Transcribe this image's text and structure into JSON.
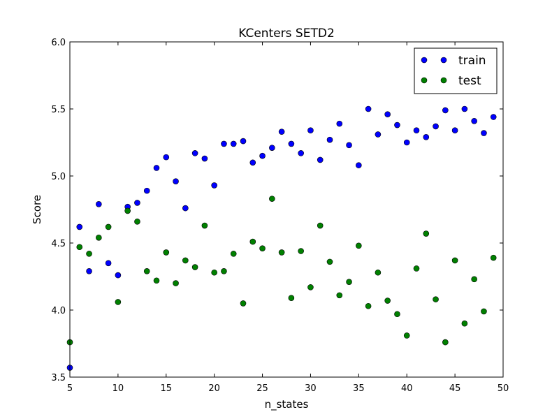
{
  "chart_data": {
    "type": "scatter",
    "title": "KCenters SETD2",
    "xlabel": "n_states",
    "ylabel": "Score",
    "xlim": [
      5,
      50
    ],
    "ylim": [
      3.5,
      6.0
    ],
    "xticks": [
      "5",
      "10",
      "15",
      "20",
      "25",
      "30",
      "35",
      "40",
      "45",
      "50"
    ],
    "yticks": [
      "3.5",
      "4.0",
      "4.5",
      "5.0",
      "5.5",
      "6.0"
    ],
    "grid": false,
    "legend_position": "top-right",
    "series": [
      {
        "name": "train",
        "color": "#0000ff",
        "x": [
          5,
          6,
          7,
          8,
          9,
          10,
          11,
          12,
          13,
          14,
          15,
          16,
          17,
          18,
          19,
          20,
          21,
          22,
          23,
          24,
          25,
          26,
          27,
          28,
          29,
          30,
          31,
          32,
          33,
          34,
          35,
          36,
          37,
          38,
          39,
          40,
          41,
          42,
          43,
          44,
          45,
          46,
          47,
          48,
          49
        ],
        "y": [
          3.57,
          4.62,
          4.29,
          4.79,
          4.35,
          4.26,
          4.77,
          4.8,
          4.89,
          5.06,
          5.14,
          4.96,
          4.76,
          5.17,
          5.13,
          4.93,
          5.24,
          5.24,
          5.26,
          5.1,
          5.15,
          5.21,
          5.33,
          5.24,
          5.17,
          5.34,
          5.12,
          5.27,
          5.39,
          5.23,
          5.08,
          5.5,
          5.31,
          5.46,
          5.38,
          5.25,
          5.34,
          5.29,
          5.37,
          5.49,
          5.34,
          5.5,
          5.41,
          5.32,
          5.44
        ]
      },
      {
        "name": "test",
        "color": "#008000",
        "x": [
          5,
          6,
          7,
          8,
          9,
          10,
          11,
          12,
          13,
          14,
          15,
          16,
          17,
          18,
          19,
          20,
          21,
          22,
          23,
          24,
          25,
          26,
          27,
          28,
          29,
          30,
          31,
          32,
          33,
          34,
          35,
          36,
          37,
          38,
          39,
          40,
          41,
          42,
          43,
          44,
          45,
          46,
          47,
          48,
          49
        ],
        "y": [
          3.76,
          4.47,
          4.42,
          4.54,
          4.62,
          4.06,
          4.74,
          4.66,
          4.29,
          4.22,
          4.43,
          4.2,
          4.37,
          4.32,
          4.63,
          4.28,
          4.29,
          4.42,
          4.05,
          4.51,
          4.46,
          4.83,
          4.43,
          4.09,
          4.44,
          4.17,
          4.63,
          4.36,
          4.11,
          4.21,
          4.48,
          4.03,
          4.28,
          4.07,
          3.97,
          3.81,
          4.31,
          4.57,
          4.08,
          3.76,
          4.37,
          3.9,
          4.23,
          3.99,
          4.39
        ]
      }
    ]
  }
}
